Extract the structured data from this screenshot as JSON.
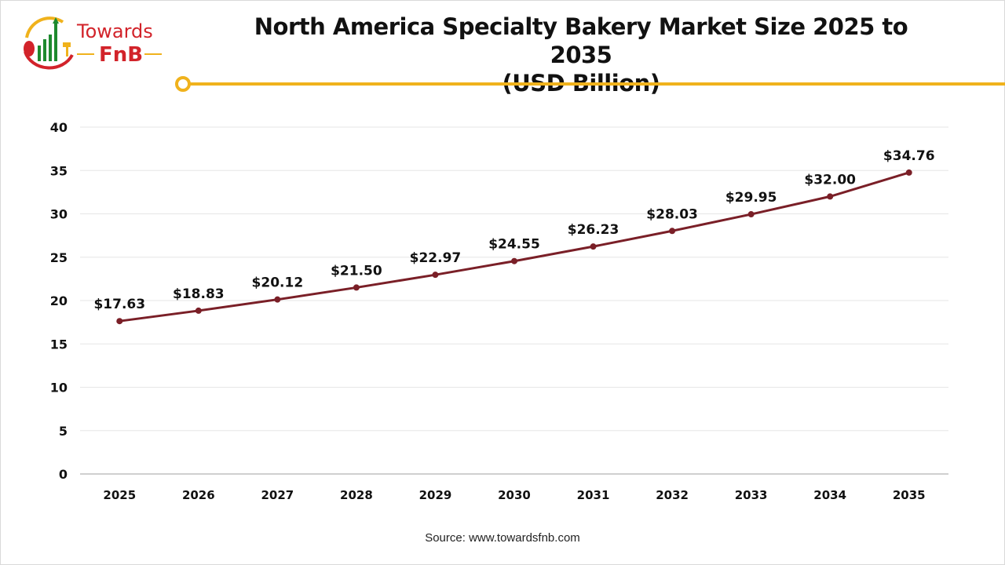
{
  "brand": {
    "name_line1": "Towards",
    "name_line2": "FnB"
  },
  "source": "Source: www.towardsfnb.com",
  "colors": {
    "line": "#7a1f27",
    "accent": "#f0b21c",
    "brand_red": "#d2232a",
    "brand_green": "#1e8a2e",
    "grid": "#e6e6e6"
  },
  "chart_data": {
    "type": "line",
    "title": "North America Specialty Bakery Market Size 2025 to 2035",
    "subtitle": "(USD Billion)",
    "categories": [
      "2025",
      "2026",
      "2027",
      "2028",
      "2029",
      "2030",
      "2031",
      "2032",
      "2033",
      "2034",
      "2035"
    ],
    "values": [
      17.63,
      18.83,
      20.12,
      21.5,
      22.97,
      24.55,
      26.23,
      28.03,
      29.95,
      32.0,
      34.76
    ],
    "data_labels": [
      "$17.63",
      "$18.83",
      "$20.12",
      "$21.50",
      "$22.97",
      "$24.55",
      "$26.23",
      "$28.03",
      "$29.95",
      "$32.00",
      "$34.76"
    ],
    "ylim": [
      0,
      40
    ],
    "yticks": [
      0,
      5,
      10,
      15,
      20,
      25,
      30,
      35,
      40
    ],
    "grid": true,
    "xlabel": "",
    "ylabel": ""
  }
}
